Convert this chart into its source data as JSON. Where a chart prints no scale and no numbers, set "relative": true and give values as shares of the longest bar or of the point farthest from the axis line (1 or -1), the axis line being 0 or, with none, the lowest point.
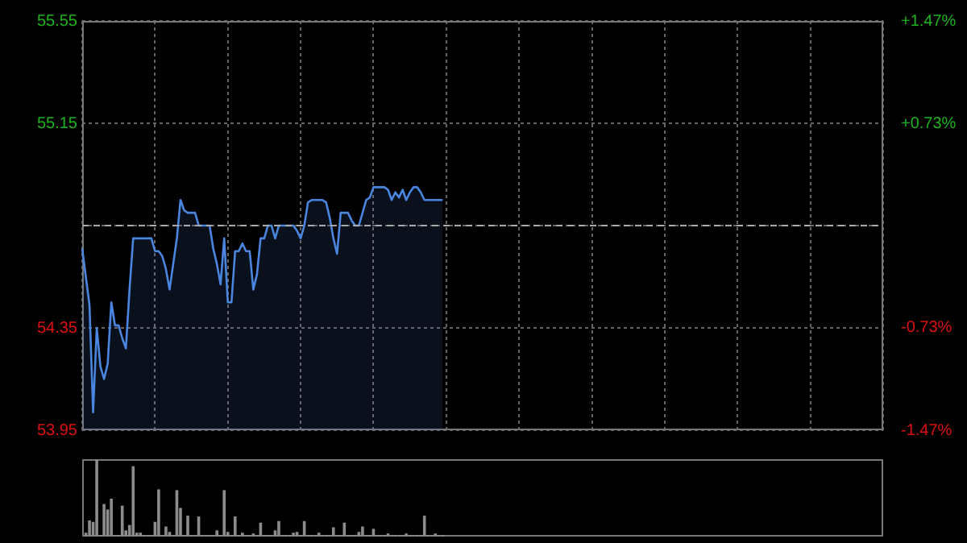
{
  "chart_data": [
    {
      "type": "area",
      "ylim": [
        53.95,
        55.55
      ],
      "yticks": [
        53.95,
        54.35,
        {
          "value": 54.75,
          "label": null
        },
        55.15,
        55.55
      ],
      "y2lim": [
        -1.47,
        1.47
      ],
      "y2ticks": [
        {
          "value": -1.47,
          "label": "-1.47%"
        },
        {
          "value": -0.73,
          "label": "-0.73%"
        },
        {
          "value": 0,
          "label": null
        },
        {
          "value": 0.73,
          "label": "+0.73%"
        },
        {
          "value": 1.47,
          "label": "+1.47%"
        }
      ],
      "tick_labels": "y",
      "grid": true,
      "legend": false,
      "marker": "none",
      "ref_lines": [
        {
          "axis": "y",
          "value": 54.75,
          "color": "#aaaaaa",
          "line_style": "dashed"
        }
      ],
      "categories": [
        null,
        null,
        null,
        null,
        null,
        null,
        null,
        null,
        null,
        null,
        null,
        null,
        null,
        null,
        null,
        null,
        null,
        null,
        null,
        null,
        null,
        null,
        null,
        null,
        null,
        null,
        null,
        null,
        null,
        null,
        null,
        null,
        null,
        null,
        null,
        null,
        null,
        null,
        null,
        null,
        null,
        null,
        null,
        null,
        null,
        null,
        null,
        null,
        null,
        null,
        null,
        null,
        null,
        null,
        null,
        null,
        null,
        null,
        null,
        null,
        null,
        null,
        null,
        null,
        null,
        null,
        null,
        null,
        null,
        null,
        null,
        null,
        null,
        null,
        null,
        null,
        null,
        null,
        null,
        null,
        null,
        null,
        null,
        null,
        null,
        null,
        null,
        null,
        null,
        null,
        null,
        null,
        null,
        null,
        null,
        null,
        null,
        null,
        null,
        null,
        null,
        null,
        null,
        null,
        null,
        null,
        null,
        null,
        null,
        null,
        null,
        null,
        null,
        null,
        null,
        null,
        null,
        null,
        null,
        null,
        null,
        null,
        null,
        null,
        null,
        null,
        null,
        null,
        null,
        null,
        null,
        null,
        null,
        null,
        null,
        null,
        null,
        null,
        null,
        null,
        null,
        null,
        null,
        null,
        null,
        null,
        null,
        null,
        null,
        null,
        null,
        null,
        null,
        null,
        null,
        null,
        null,
        null,
        null,
        null,
        null,
        null,
        null,
        null,
        null,
        null,
        null,
        null,
        null,
        null,
        null,
        null,
        null,
        null,
        null,
        null,
        null,
        null,
        null,
        null,
        null,
        null,
        null,
        null,
        null,
        null,
        null,
        null,
        null,
        null,
        null,
        null,
        null,
        null,
        null,
        null,
        null,
        null,
        null,
        null,
        null,
        null,
        null,
        null,
        null,
        null,
        null,
        null,
        null,
        null,
        null,
        null,
        null,
        null,
        null,
        null,
        null,
        null,
        null,
        null,
        null
      ],
      "series": [
        {
          "color": "#4a86e0",
          "values": [
            54.66,
            54.55,
            54.44,
            54.02,
            54.35,
            54.2,
            54.15,
            54.21,
            54.45,
            54.36,
            54.36,
            54.31,
            54.27,
            54.5,
            54.7,
            54.7,
            54.7,
            54.7,
            54.7,
            54.7,
            54.65,
            54.65,
            54.63,
            54.58,
            54.5,
            54.6,
            54.7,
            54.85,
            54.81,
            54.8,
            54.8,
            54.8,
            54.75,
            54.75,
            54.75,
            54.75,
            54.66,
            54.6,
            54.52,
            54.7,
            54.45,
            54.45,
            54.65,
            54.65,
            54.68,
            54.65,
            54.65,
            54.5,
            54.56,
            54.7,
            54.7,
            54.75,
            54.75,
            54.7,
            54.75,
            54.75,
            54.75,
            54.75,
            54.75,
            54.73,
            54.7,
            54.75,
            54.84,
            54.85,
            54.85,
            54.85,
            54.85,
            54.84,
            54.78,
            54.7,
            54.64,
            54.8,
            54.8,
            54.8,
            54.77,
            54.75,
            54.75,
            54.8,
            54.85,
            54.86,
            54.9,
            54.9,
            54.9,
            54.9,
            54.89,
            54.85,
            54.88,
            54.86,
            54.89,
            54.85,
            54.88,
            54.9,
            54.9,
            54.88,
            54.85,
            54.85,
            54.85,
            54.85,
            54.85,
            54.85,
            null,
            null,
            null,
            null,
            null,
            null,
            null,
            null,
            null,
            null,
            null,
            null,
            null,
            null,
            null,
            null,
            null,
            null,
            null,
            null,
            null,
            null,
            null,
            null,
            null,
            null,
            null,
            null,
            null,
            null,
            null,
            null,
            null,
            null,
            null,
            null,
            null,
            null,
            null,
            null,
            null,
            null,
            null,
            null,
            null,
            null,
            null,
            null,
            null,
            null,
            null,
            null,
            null,
            null,
            null,
            null,
            null,
            null,
            null,
            null,
            null,
            null,
            null,
            null,
            null,
            null,
            null,
            null,
            null,
            null,
            null,
            null,
            null,
            null,
            null,
            null,
            null,
            null,
            null,
            null,
            null,
            null,
            null,
            null,
            null,
            null,
            null,
            null,
            null,
            null,
            null,
            null,
            null,
            null,
            null,
            null,
            null,
            null,
            null,
            null,
            null,
            null,
            null,
            null,
            null,
            null,
            null,
            null,
            null,
            null,
            null,
            null,
            null,
            null,
            null,
            null,
            null,
            null,
            null,
            null,
            null
          ]
        }
      ]
    },
    {
      "type": "bar",
      "relative": true,
      "tick_labels": false,
      "legend": false,
      "categories": [
        null,
        null,
        null,
        null,
        null,
        null,
        null,
        null,
        null,
        null,
        null,
        null,
        null,
        null,
        null,
        null,
        null,
        null,
        null,
        null,
        null,
        null,
        null,
        null,
        null,
        null,
        null,
        null,
        null,
        null,
        null,
        null,
        null,
        null,
        null,
        null,
        null,
        null,
        null,
        null,
        null,
        null,
        null,
        null,
        null,
        null,
        null,
        null,
        null,
        null,
        null,
        null,
        null,
        null,
        null,
        null,
        null,
        null,
        null,
        null,
        null,
        null,
        null,
        null,
        null,
        null,
        null,
        null,
        null,
        null,
        null,
        null,
        null,
        null,
        null,
        null,
        null,
        null,
        null,
        null,
        null,
        null,
        null,
        null,
        null,
        null,
        null,
        null,
        null,
        null,
        null,
        null,
        null,
        null,
        null,
        null,
        null,
        null,
        null,
        null,
        null,
        null,
        null,
        null,
        null,
        null,
        null,
        null,
        null,
        null,
        null,
        null,
        null,
        null,
        null,
        null,
        null,
        null,
        null,
        null,
        null,
        null,
        null,
        null,
        null,
        null,
        null,
        null,
        null,
        null,
        null,
        null,
        null,
        null,
        null,
        null,
        null,
        null,
        null,
        null,
        null,
        null,
        null,
        null,
        null,
        null,
        null,
        null,
        null,
        null,
        null,
        null,
        null,
        null,
        null,
        null,
        null,
        null,
        null,
        null,
        null,
        null,
        null,
        null,
        null,
        null,
        null,
        null,
        null,
        null,
        null,
        null,
        null,
        null,
        null,
        null,
        null,
        null,
        null,
        null,
        null,
        null,
        null,
        null,
        null,
        null,
        null,
        null,
        null,
        null,
        null,
        null,
        null,
        null,
        null,
        null,
        null,
        null,
        null,
        null,
        null,
        null,
        null,
        null,
        null,
        null,
        null,
        null,
        null,
        null,
        null,
        null,
        null,
        null,
        null,
        null,
        null,
        null,
        null,
        null,
        null
      ],
      "series": [
        {
          "color": "#8c8c8c",
          "values": [
            null,
            0.05,
            0.21,
            0.19,
            1,
            0.02,
            0.42,
            0.35,
            0.49,
            0.02,
            0.02,
            0.4,
            0.08,
            0.15,
            0.91,
            0.05,
            0.05,
            0.02,
            0.02,
            0.02,
            0.19,
            0.61,
            0.02,
            0.13,
            0.06,
            0.02,
            0.6,
            0.37,
            0.02,
            0.27,
            0.02,
            0.02,
            0.26,
            0.02,
            0.02,
            0.02,
            0.02,
            0.08,
            0.02,
            0.6,
            0.06,
            0.02,
            0.26,
            0.02,
            0.05,
            0.02,
            0.02,
            0.04,
            0.02,
            0.18,
            0.02,
            0.02,
            0.02,
            0.08,
            0.2,
            0.02,
            0.02,
            0.02,
            0.05,
            0.06,
            0.02,
            0.2,
            0.02,
            0.02,
            0.02,
            0.05,
            0.02,
            0.02,
            0.02,
            0.12,
            0.02,
            0.02,
            0.18,
            0.02,
            0.02,
            0.02,
            0.06,
            0.13,
            0.02,
            0.02,
            0.1,
            0.02,
            0.02,
            0.02,
            0.04,
            0.02,
            0.02,
            0.02,
            0.02,
            0.04,
            0.02,
            0.02,
            0.02,
            0.02,
            0.27,
            0.02,
            0.02,
            0.04,
            0.02,
            0.02,
            null,
            null,
            null,
            null,
            null,
            null,
            null,
            null,
            null,
            null,
            null,
            null,
            null,
            null,
            null,
            null,
            null,
            null,
            null,
            null,
            null,
            null,
            null,
            null,
            null,
            null,
            null,
            null,
            null,
            null,
            null,
            null,
            null,
            null,
            null,
            null,
            null,
            null,
            null,
            null,
            null,
            null,
            null,
            null,
            null,
            null,
            null,
            null,
            null,
            null,
            null,
            null,
            null,
            null,
            null,
            null,
            null,
            null,
            null,
            null,
            null,
            null,
            null,
            null,
            null,
            null,
            null,
            null,
            null,
            null,
            null,
            null,
            null,
            null,
            null,
            null,
            null,
            null,
            null,
            null,
            null,
            null,
            null,
            null,
            null,
            null,
            null,
            null,
            null,
            null,
            null,
            null,
            null,
            null,
            null,
            null,
            null,
            null,
            null,
            null,
            null,
            null,
            null,
            null,
            null,
            null,
            null,
            null,
            null,
            null,
            null,
            null,
            null,
            null,
            null,
            null,
            null,
            null,
            null,
            null,
            null
          ]
        }
      ]
    }
  ]
}
